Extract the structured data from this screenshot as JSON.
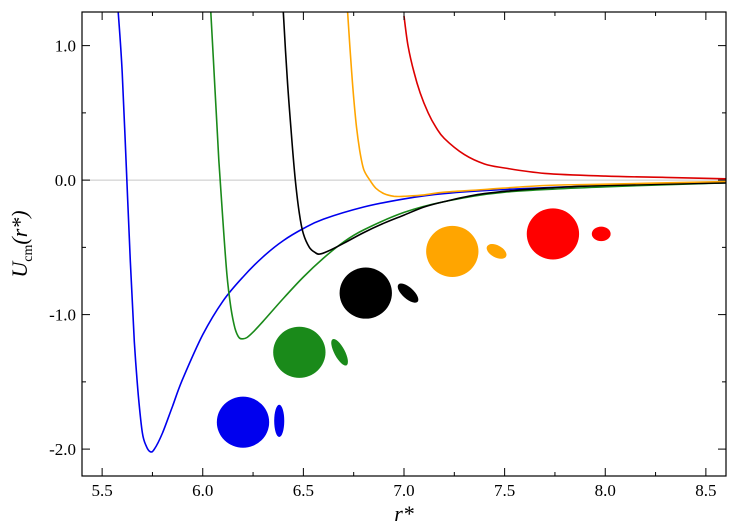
{
  "chart_data": {
    "type": "line",
    "xlabel": "r*",
    "ylabel": "Ucm(r*)",
    "xlim": [
      5.4,
      8.6
    ],
    "ylim": [
      -2.2,
      1.25
    ],
    "xticks": [
      "5.5",
      "6.0",
      "6.5",
      "7.0",
      "7.5",
      "8.0",
      "8.5"
    ],
    "yticks": [
      "-2.0",
      "-1.0",
      "0.0",
      "1.0"
    ],
    "zero_line": true,
    "series": [
      {
        "color": "#0000ee",
        "points": [
          [
            5.58,
            1.25
          ],
          [
            5.6,
            0.8
          ],
          [
            5.62,
            0.1
          ],
          [
            5.64,
            -0.6
          ],
          [
            5.66,
            -1.2
          ],
          [
            5.68,
            -1.6
          ],
          [
            5.7,
            -1.88
          ],
          [
            5.72,
            -1.98
          ],
          [
            5.74,
            -2.02
          ],
          [
            5.76,
            -2.0
          ],
          [
            5.8,
            -1.88
          ],
          [
            5.85,
            -1.68
          ],
          [
            5.9,
            -1.48
          ],
          [
            6.0,
            -1.15
          ],
          [
            6.1,
            -0.9
          ],
          [
            6.2,
            -0.72
          ],
          [
            6.3,
            -0.57
          ],
          [
            6.4,
            -0.45
          ],
          [
            6.5,
            -0.36
          ],
          [
            6.6,
            -0.29
          ],
          [
            6.8,
            -0.2
          ],
          [
            7.0,
            -0.14
          ],
          [
            7.2,
            -0.1
          ],
          [
            7.5,
            -0.07
          ],
          [
            8.0,
            -0.04
          ],
          [
            8.6,
            -0.02
          ]
        ]
      },
      {
        "color": "#1a8a1a",
        "points": [
          [
            6.04,
            1.25
          ],
          [
            6.06,
            0.7
          ],
          [
            6.08,
            0.15
          ],
          [
            6.1,
            -0.3
          ],
          [
            6.12,
            -0.7
          ],
          [
            6.14,
            -0.95
          ],
          [
            6.16,
            -1.1
          ],
          [
            6.18,
            -1.17
          ],
          [
            6.2,
            -1.18
          ],
          [
            6.22,
            -1.17
          ],
          [
            6.25,
            -1.13
          ],
          [
            6.3,
            -1.05
          ],
          [
            6.4,
            -0.88
          ],
          [
            6.5,
            -0.72
          ],
          [
            6.6,
            -0.58
          ],
          [
            6.7,
            -0.46
          ],
          [
            6.8,
            -0.37
          ],
          [
            7.0,
            -0.24
          ],
          [
            7.2,
            -0.16
          ],
          [
            7.5,
            -0.09
          ],
          [
            8.0,
            -0.05
          ],
          [
            8.6,
            -0.02
          ]
        ]
      },
      {
        "color": "#000000",
        "points": [
          [
            6.4,
            1.25
          ],
          [
            6.42,
            0.75
          ],
          [
            6.44,
            0.35
          ],
          [
            6.46,
            0.0
          ],
          [
            6.48,
            -0.25
          ],
          [
            6.5,
            -0.4
          ],
          [
            6.53,
            -0.5
          ],
          [
            6.56,
            -0.54
          ],
          [
            6.58,
            -0.55
          ],
          [
            6.62,
            -0.53
          ],
          [
            6.7,
            -0.47
          ],
          [
            6.8,
            -0.39
          ],
          [
            6.9,
            -0.32
          ],
          [
            7.0,
            -0.26
          ],
          [
            7.1,
            -0.2
          ],
          [
            7.2,
            -0.16
          ],
          [
            7.4,
            -0.1
          ],
          [
            7.7,
            -0.06
          ],
          [
            8.0,
            -0.04
          ],
          [
            8.6,
            -0.02
          ]
        ]
      },
      {
        "color": "#ffa500",
        "points": [
          [
            6.72,
            1.25
          ],
          [
            6.74,
            0.8
          ],
          [
            6.76,
            0.45
          ],
          [
            6.78,
            0.22
          ],
          [
            6.8,
            0.08
          ],
          [
            6.83,
            0.0
          ],
          [
            6.86,
            -0.06
          ],
          [
            6.9,
            -0.1
          ],
          [
            6.95,
            -0.12
          ],
          [
            7.0,
            -0.12
          ],
          [
            7.1,
            -0.11
          ],
          [
            7.2,
            -0.09
          ],
          [
            7.4,
            -0.07
          ],
          [
            7.7,
            -0.04
          ],
          [
            8.0,
            -0.03
          ],
          [
            8.6,
            -0.01
          ]
        ]
      },
      {
        "color": "#dd0000",
        "points": [
          [
            7.0,
            1.22
          ],
          [
            7.02,
            1.0
          ],
          [
            7.05,
            0.8
          ],
          [
            7.08,
            0.65
          ],
          [
            7.12,
            0.5
          ],
          [
            7.16,
            0.39
          ],
          [
            7.2,
            0.31
          ],
          [
            7.3,
            0.19
          ],
          [
            7.4,
            0.12
          ],
          [
            7.5,
            0.09
          ],
          [
            7.7,
            0.05
          ],
          [
            8.0,
            0.03
          ],
          [
            8.3,
            0.02
          ],
          [
            8.6,
            0.01
          ]
        ]
      }
    ],
    "icons": [
      {
        "color": "#0000ee",
        "sphere": [
          6.2,
          -1.8,
          0.13,
          0.19
        ],
        "ellipse": [
          6.38,
          -1.79,
          0.025,
          0.12,
          0
        ]
      },
      {
        "color": "#1a8a1a",
        "sphere": [
          6.48,
          -1.28,
          0.13,
          0.19
        ],
        "ellipse": [
          6.68,
          -1.28,
          0.026,
          0.11,
          -28
        ]
      },
      {
        "color": "#000000",
        "sphere": [
          6.81,
          -0.84,
          0.13,
          0.19
        ],
        "ellipse": [
          7.02,
          -0.84,
          0.028,
          0.096,
          -48
        ]
      },
      {
        "color": "#ffa500",
        "sphere": [
          7.24,
          -0.53,
          0.13,
          0.19
        ],
        "ellipse": [
          7.46,
          -0.53,
          0.03,
          0.08,
          -62
        ]
      },
      {
        "color": "#ff0000",
        "sphere": [
          7.74,
          -0.4,
          0.13,
          0.19
        ],
        "ellipse": [
          7.98,
          -0.4,
          0.036,
          0.07,
          -90
        ]
      }
    ]
  }
}
